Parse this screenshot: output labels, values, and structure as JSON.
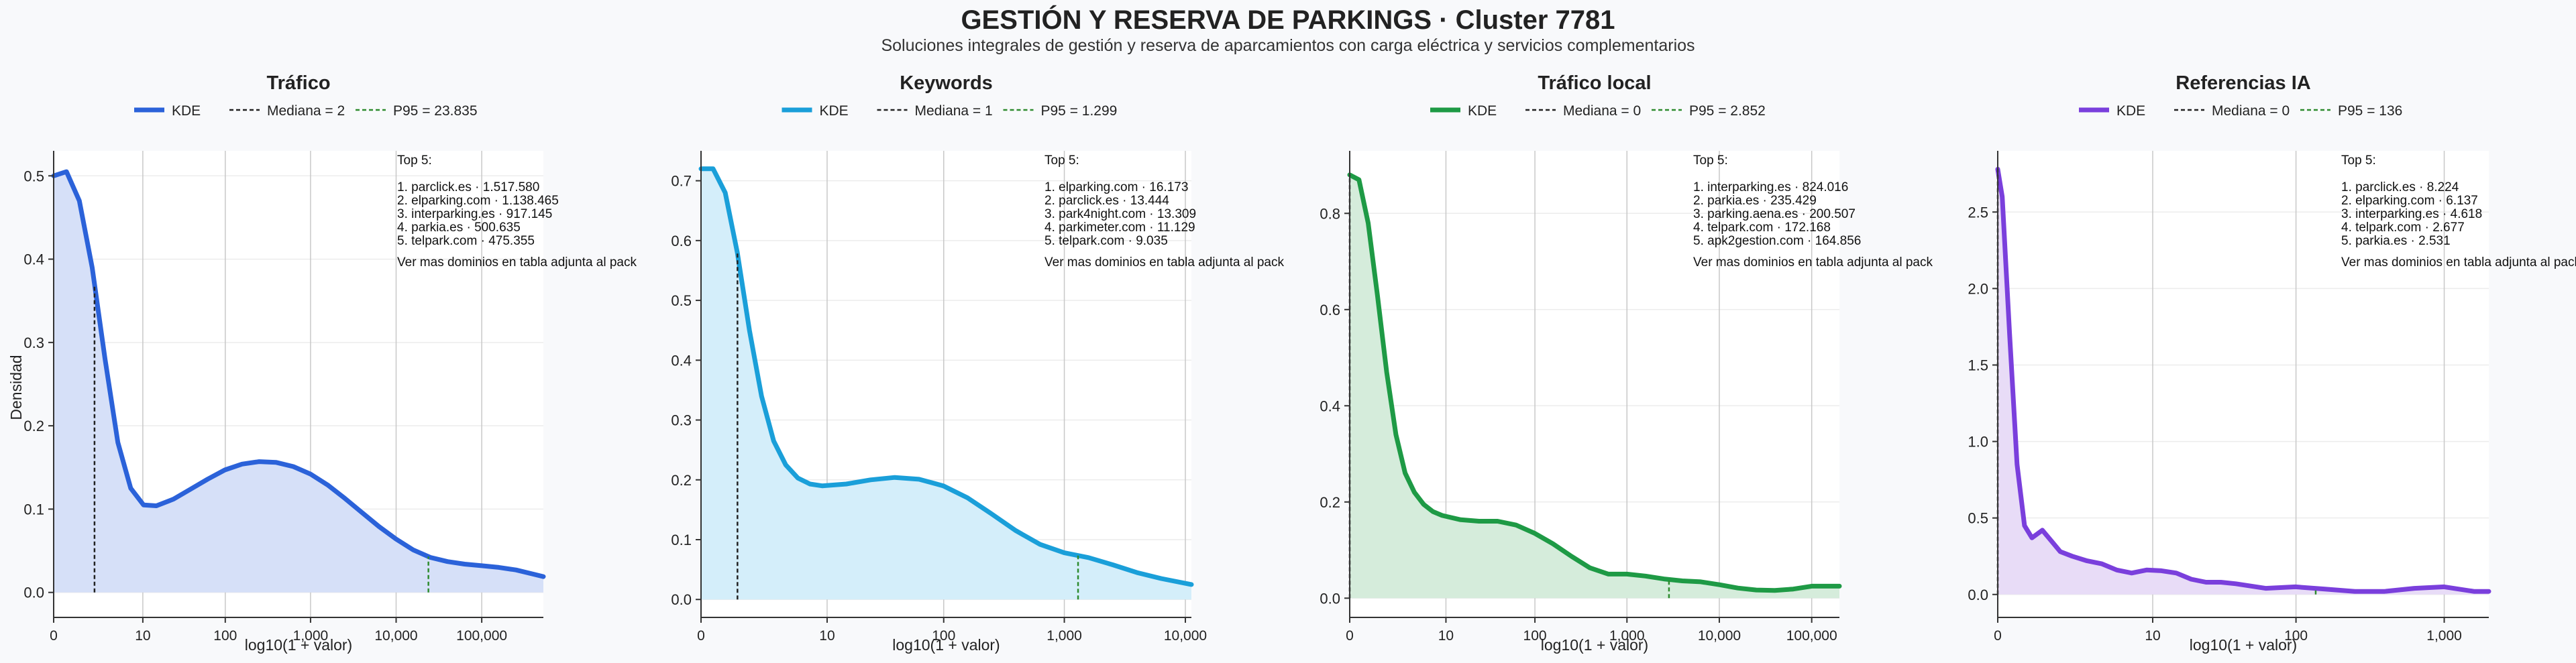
{
  "title": "GESTIÓN Y RESERVA DE PARKINGS · Cluster 7781",
  "subtitle": "Soluciones integrales de gestión y reserva de aparcamientos con carga eléctrica y servicios complementarios",
  "legend_labels": {
    "kde": "KDE"
  },
  "colors": {
    "background": "#f8f9fb",
    "plot_bg": "#ffffff",
    "grid": "#c8c8c8",
    "median_line": "#222222",
    "p95_line": "#2e8b2e"
  },
  "chart_data": [
    {
      "type": "area",
      "title": "Tráfico",
      "xlabel": "log10(1 + valor)",
      "ylabel": "Densidad",
      "x_scale": "log10(1+x)",
      "xlim": [
        0,
        5.72
      ],
      "ylim": [
        -0.03,
        0.53
      ],
      "grid": true,
      "legend_position": "top",
      "color": "#2b62d9",
      "fill": "#d6e0f8",
      "x_ticks": [
        0,
        10,
        100,
        1000,
        10000,
        100000
      ],
      "x_tick_labels": [
        "0",
        "10",
        "100",
        "1,000",
        "10,000",
        "100,000"
      ],
      "y_ticks": [
        0.0,
        0.1,
        0.2,
        0.3,
        0.4,
        0.5
      ],
      "y_tick_labels": [
        "0.0",
        "0.1",
        "0.2",
        "0.3",
        "0.4",
        "0.5"
      ],
      "median": 2,
      "median_label": "Mediana = 2",
      "p95": 23835,
      "p95_label": "P95 = 23.835",
      "kde": {
        "x": [
          0,
          0.15,
          0.3,
          0.45,
          0.6,
          0.75,
          0.9,
          1.05,
          1.2,
          1.4,
          1.6,
          1.8,
          2.0,
          2.2,
          2.4,
          2.6,
          2.8,
          3.0,
          3.2,
          3.4,
          3.6,
          3.8,
          4.0,
          4.2,
          4.4,
          4.6,
          4.8,
          5.0,
          5.2,
          5.4,
          5.6,
          5.72
        ],
        "y": [
          0.5,
          0.505,
          0.47,
          0.39,
          0.28,
          0.18,
          0.125,
          0.105,
          0.104,
          0.112,
          0.124,
          0.136,
          0.147,
          0.154,
          0.157,
          0.156,
          0.151,
          0.142,
          0.129,
          0.113,
          0.096,
          0.079,
          0.064,
          0.051,
          0.042,
          0.037,
          0.034,
          0.032,
          0.03,
          0.027,
          0.022,
          0.019
        ]
      },
      "top_title": "Top 5:",
      "top_items": [
        "1. parclick.es · 1.517.580",
        "2. elparking.com · 1.138.465",
        "3. interparking.es · 917.145",
        "4. parkia.es · 500.635",
        "5. telpark.com · 475.355"
      ],
      "top_note": "Ver mas dominios en tabla adjunta al pack"
    },
    {
      "type": "area",
      "title": "Keywords",
      "xlabel": "log10(1 + valor)",
      "ylabel": "",
      "x_scale": "log10(1+x)",
      "xlim": [
        0,
        4.05
      ],
      "ylim": [
        -0.03,
        0.75
      ],
      "grid": true,
      "legend_position": "top",
      "color": "#1a9fd9",
      "fill": "#d4eefa",
      "x_ticks": [
        0,
        10,
        100,
        1000,
        10000
      ],
      "x_tick_labels": [
        "0",
        "10",
        "100",
        "1,000",
        "10,000"
      ],
      "y_ticks": [
        0.0,
        0.1,
        0.2,
        0.3,
        0.4,
        0.5,
        0.6,
        0.7
      ],
      "y_tick_labels": [
        "0.0",
        "0.1",
        "0.2",
        "0.3",
        "0.4",
        "0.5",
        "0.6",
        "0.7"
      ],
      "median": 1,
      "median_label": "Mediana = 1",
      "p95": 1299,
      "p95_label": "P95 = 1.299",
      "kde": {
        "x": [
          0,
          0.1,
          0.2,
          0.3,
          0.4,
          0.5,
          0.6,
          0.7,
          0.8,
          0.9,
          1.0,
          1.2,
          1.4,
          1.6,
          1.8,
          2.0,
          2.2,
          2.4,
          2.6,
          2.8,
          3.0,
          3.2,
          3.4,
          3.6,
          3.8,
          4.05
        ],
        "y": [
          0.72,
          0.72,
          0.68,
          0.58,
          0.45,
          0.34,
          0.265,
          0.225,
          0.203,
          0.193,
          0.19,
          0.193,
          0.2,
          0.204,
          0.201,
          0.19,
          0.17,
          0.143,
          0.115,
          0.092,
          0.078,
          0.07,
          0.058,
          0.045,
          0.035,
          0.025
        ]
      },
      "top_title": "Top 5:",
      "top_items": [
        "1. elparking.com · 16.173",
        "2. parclick.es · 13.444",
        "3. park4night.com · 13.309",
        "4. parkimeter.com · 11.129",
        "5. telpark.com · 9.035"
      ],
      "top_note": "Ver mas dominios en tabla adjunta al pack"
    },
    {
      "type": "area",
      "title": "Tráfico local",
      "xlabel": "log10(1 + valor)",
      "ylabel": "",
      "x_scale": "log10(1+x)",
      "xlim": [
        0,
        5.3
      ],
      "ylim": [
        -0.04,
        0.93
      ],
      "grid": true,
      "legend_position": "top",
      "color": "#1e9a45",
      "fill": "#d5ecdb",
      "x_ticks": [
        0,
        10,
        100,
        1000,
        10000,
        100000
      ],
      "x_tick_labels": [
        "0",
        "10",
        "100",
        "1,000",
        "10,000",
        "100,000"
      ],
      "y_ticks": [
        0.0,
        0.2,
        0.4,
        0.6,
        0.8
      ],
      "y_tick_labels": [
        "0.0",
        "0.2",
        "0.4",
        "0.6",
        "0.8"
      ],
      "median": 0,
      "median_label": "Mediana = 0",
      "p95": 2852,
      "p95_label": "P95 = 2.852",
      "kde": {
        "x": [
          0,
          0.1,
          0.2,
          0.3,
          0.4,
          0.5,
          0.6,
          0.7,
          0.8,
          0.9,
          1.0,
          1.2,
          1.4,
          1.6,
          1.8,
          2.0,
          2.2,
          2.4,
          2.6,
          2.8,
          3.0,
          3.2,
          3.4,
          3.6,
          3.8,
          4.0,
          4.2,
          4.4,
          4.6,
          4.8,
          5.0,
          5.3
        ],
        "y": [
          0.88,
          0.87,
          0.78,
          0.63,
          0.47,
          0.34,
          0.26,
          0.22,
          0.195,
          0.18,
          0.172,
          0.163,
          0.16,
          0.16,
          0.152,
          0.135,
          0.113,
          0.087,
          0.063,
          0.05,
          0.05,
          0.046,
          0.04,
          0.036,
          0.034,
          0.028,
          0.021,
          0.017,
          0.016,
          0.019,
          0.025,
          0.025
        ]
      },
      "top_title": "Top 5:",
      "top_items": [
        "1. interparking.es · 824.016",
        "2. parkia.es · 235.429",
        "3. parking.aena.es · 200.507",
        "4. telpark.com · 172.168",
        "5. apk2gestion.com · 164.856"
      ],
      "top_note": "Ver mas dominios en tabla adjunta al pack"
    },
    {
      "type": "area",
      "title": "Referencias IA",
      "xlabel": "log10(1 + valor)",
      "ylabel": "",
      "x_scale": "log10(1+x)",
      "xlim": [
        0,
        3.3
      ],
      "ylim": [
        -0.15,
        2.9
      ],
      "grid": true,
      "legend_position": "top",
      "color": "#7a3fdc",
      "fill": "#e8dcf7",
      "x_ticks": [
        0,
        10,
        100,
        1000
      ],
      "x_tick_labels": [
        "0",
        "10",
        "100",
        "1,000"
      ],
      "y_ticks": [
        0.0,
        0.5,
        1.0,
        1.5,
        2.0,
        2.5
      ],
      "y_tick_labels": [
        "0.0",
        "0.5",
        "1.0",
        "1.5",
        "2.0",
        "2.5"
      ],
      "median": 0,
      "median_label": "Mediana = 0",
      "p95": 136,
      "p95_label": "P95 = 136",
      "kde": {
        "x": [
          0,
          0.03,
          0.08,
          0.13,
          0.18,
          0.23,
          0.3,
          0.36,
          0.42,
          0.5,
          0.6,
          0.7,
          0.8,
          0.9,
          1.0,
          1.1,
          1.2,
          1.3,
          1.4,
          1.5,
          1.6,
          1.8,
          2.0,
          2.2,
          2.4,
          2.6,
          2.8,
          3.0,
          3.2,
          3.3
        ],
        "y": [
          2.78,
          2.6,
          1.7,
          0.85,
          0.45,
          0.37,
          0.42,
          0.35,
          0.28,
          0.25,
          0.22,
          0.2,
          0.16,
          0.14,
          0.16,
          0.155,
          0.14,
          0.1,
          0.08,
          0.08,
          0.07,
          0.04,
          0.05,
          0.035,
          0.02,
          0.02,
          0.04,
          0.05,
          0.02,
          0.02
        ]
      },
      "top_title": "Top 5:",
      "top_items": [
        "1. parclick.es · 8.224",
        "2. elparking.com · 6.137",
        "3. interparking.es · 4.618",
        "4. telpark.com · 2.677",
        "5. parkia.es · 2.531"
      ],
      "top_note": "Ver mas dominios en tabla adjunta al pack"
    }
  ]
}
